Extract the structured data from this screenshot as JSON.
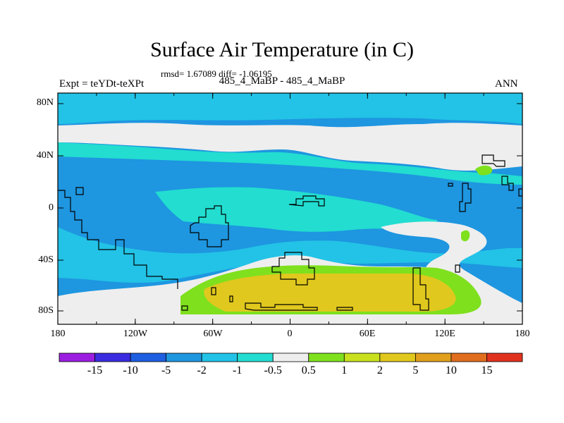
{
  "title": "Surface Air Temperature (in C)",
  "stats_line": "rmsd= 1.67089 diff= -1.06195",
  "runs_line": "485_4_MaBP - 485_4_MaBP",
  "expt_label": "Expt = teYDt-teXPt",
  "season_label": "ANN",
  "y_axis_labels": [
    "80N",
    "40N",
    "0",
    "40S",
    "80S"
  ],
  "x_axis_labels": [
    "180",
    "120W",
    "60W",
    "0",
    "60E",
    "120E",
    "180"
  ],
  "colorbar": {
    "labels": [
      "-15",
      "-10",
      "-5",
      "-2",
      "-1",
      "-0.5",
      "0.5",
      "1",
      "2",
      "5",
      "10",
      "15"
    ],
    "colors": [
      "#9b1ee0",
      "#3b2ce0",
      "#1e5ee0",
      "#1e96e0",
      "#22c3e6",
      "#22ddd0",
      "#eeeeee",
      "#7fe01e",
      "#c8e01e",
      "#e0c81e",
      "#e0a01e",
      "#e06e1e",
      "#e0321e"
    ]
  },
  "map_colors": {
    "deep_blue": "#1e96e0",
    "mid_blue": "#22c3e6",
    "cyan": "#22ddd0",
    "neutral": "#eeeeee",
    "green": "#7fe01e",
    "yellow": "#c8e01e",
    "orange": "#e0c81e",
    "coast": "#000000"
  }
}
